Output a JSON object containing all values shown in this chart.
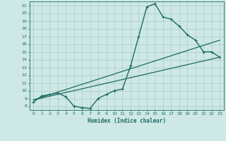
{
  "title": "",
  "xlabel": "Humidex (Indice chaleur)",
  "ylabel": "",
  "bg_color": "#cde8e5",
  "line_color": "#1e6b63",
  "grid_color": "#a8ccc8",
  "xlim": [
    -0.5,
    23.5
  ],
  "ylim": [
    7.5,
    21.5
  ],
  "xticks": [
    0,
    1,
    2,
    3,
    4,
    5,
    6,
    7,
    8,
    9,
    10,
    11,
    12,
    13,
    14,
    15,
    16,
    17,
    18,
    19,
    20,
    21,
    22,
    23
  ],
  "xticklabels": [
    "0",
    "1",
    "2",
    "3",
    "4",
    "5",
    "6",
    "7",
    "8",
    "9",
    "10",
    "11",
    "12",
    "13",
    "14",
    "15",
    "16",
    "17",
    "18",
    "19",
    "20",
    "21",
    "22",
    "23"
  ],
  "yticks": [
    8,
    9,
    10,
    11,
    12,
    13,
    14,
    15,
    16,
    17,
    18,
    19,
    20,
    21
  ],
  "yticklabels": [
    "8",
    "9",
    "10",
    "11",
    "12",
    "13",
    "14",
    "15",
    "16",
    "17",
    "18",
    "19",
    "20",
    "21"
  ],
  "curve1_x": [
    0,
    1,
    2,
    3,
    4,
    5,
    6,
    7,
    8,
    9,
    10,
    11,
    12,
    13,
    14,
    15,
    16,
    17,
    18,
    19,
    20,
    21,
    22,
    23
  ],
  "curve1_y": [
    8.5,
    9.3,
    9.5,
    9.7,
    9.2,
    8.0,
    7.8,
    7.7,
    9.0,
    9.5,
    10.0,
    10.2,
    13.2,
    17.0,
    20.8,
    21.2,
    19.5,
    19.2,
    18.3,
    17.2,
    16.5,
    15.0,
    15.0,
    14.3
  ],
  "curve2_x": [
    0,
    23
  ],
  "curve2_y": [
    8.8,
    14.3
  ],
  "curve3_x": [
    0,
    23
  ],
  "curve3_y": [
    8.8,
    16.5
  ]
}
